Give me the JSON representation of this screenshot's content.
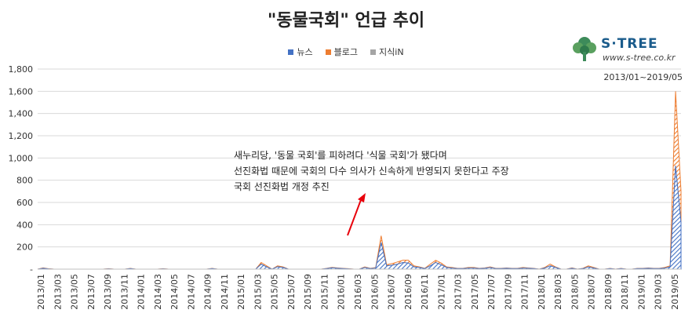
{
  "chart_data": {
    "type": "area",
    "title": "\"동물국회\" 언급 추이",
    "date_range": "2013/01~2019/05",
    "ylim": [
      0,
      1800
    ],
    "yticks": [
      0,
      200,
      400,
      600,
      800,
      1000,
      1200,
      1400,
      1600,
      1800
    ],
    "ytick_labels": [
      "-",
      "200",
      "400",
      "600",
      "800",
      "1,000",
      "1,200",
      "1,400",
      "1,600",
      "1,800"
    ],
    "xtick_labels": [
      "2013/01",
      "2013/03",
      "2013/05",
      "2013/07",
      "2013/09",
      "2013/11",
      "2014/01",
      "2014/03",
      "2014/05",
      "2014/07",
      "2014/09",
      "2014/11",
      "2015/01",
      "2015/03",
      "2015/05",
      "2015/07",
      "2015/09",
      "2015/11",
      "2016/01",
      "2016/03",
      "2016/05",
      "2016/07",
      "2016/09",
      "2016/11",
      "2017/01",
      "2017/03",
      "2017/05",
      "2017/07",
      "2017/09",
      "2017/11",
      "2018/01",
      "2018/03",
      "2018/05",
      "2018/07",
      "2018/09",
      "2018/11",
      "2019/01",
      "2019/03",
      "2019/05"
    ],
    "grid": true,
    "legend_position": "top",
    "stacked": true,
    "series": [
      {
        "name": "뉴스",
        "color": "#4472c4",
        "values": [
          0,
          8,
          3,
          0,
          0,
          0,
          0,
          0,
          0,
          0,
          0,
          0,
          0,
          3,
          0,
          0,
          0,
          5,
          0,
          0,
          0,
          0,
          0,
          3,
          0,
          0,
          0,
          0,
          0,
          0,
          0,
          0,
          5,
          0,
          0,
          0,
          0,
          0,
          0,
          0,
          0,
          45,
          20,
          0,
          22,
          15,
          0,
          0,
          0,
          0,
          0,
          0,
          0,
          5,
          12,
          8,
          5,
          3,
          0,
          0,
          15,
          5,
          10,
          240,
          30,
          35,
          45,
          60,
          55,
          20,
          15,
          5,
          30,
          60,
          40,
          15,
          10,
          5,
          5,
          10,
          10,
          5,
          8,
          15,
          5,
          5,
          8,
          5,
          5,
          10,
          8,
          5,
          0,
          10,
          30,
          15,
          0,
          0,
          8,
          0,
          5,
          20,
          10,
          0,
          0,
          5,
          0,
          5,
          0,
          0,
          5,
          5,
          8,
          5,
          5,
          10,
          20,
          930,
          420
        ]
      },
      {
        "name": "블로그",
        "color": "#ed7d31",
        "values": [
          0,
          3,
          1,
          0,
          0,
          0,
          0,
          0,
          0,
          0,
          0,
          0,
          0,
          1,
          0,
          0,
          0,
          2,
          0,
          0,
          0,
          0,
          0,
          1,
          0,
          0,
          0,
          0,
          0,
          0,
          0,
          0,
          2,
          0,
          0,
          0,
          0,
          0,
          0,
          0,
          0,
          15,
          10,
          0,
          8,
          5,
          0,
          0,
          0,
          0,
          0,
          0,
          0,
          2,
          4,
          3,
          2,
          1,
          0,
          0,
          5,
          2,
          4,
          60,
          10,
          15,
          20,
          20,
          25,
          10,
          5,
          2,
          15,
          20,
          15,
          5,
          5,
          2,
          2,
          5,
          5,
          2,
          3,
          5,
          2,
          2,
          3,
          2,
          2,
          5,
          3,
          2,
          0,
          5,
          15,
          5,
          0,
          0,
          3,
          0,
          2,
          10,
          5,
          0,
          0,
          2,
          0,
          2,
          0,
          0,
          2,
          2,
          3,
          2,
          2,
          5,
          10,
          670,
          280
        ]
      },
      {
        "name": "지식iN",
        "color": "#a5a5a5",
        "values": [
          0,
          0,
          0,
          0,
          0,
          0,
          0,
          0,
          0,
          0,
          0,
          0,
          0,
          0,
          0,
          0,
          0,
          0,
          0,
          0,
          0,
          0,
          0,
          0,
          0,
          0,
          0,
          0,
          0,
          0,
          0,
          0,
          0,
          0,
          0,
          0,
          0,
          0,
          0,
          0,
          0,
          0,
          0,
          0,
          0,
          0,
          0,
          0,
          0,
          0,
          0,
          0,
          0,
          0,
          0,
          0,
          0,
          0,
          0,
          0,
          0,
          0,
          0,
          0,
          0,
          0,
          0,
          0,
          0,
          0,
          0,
          0,
          0,
          0,
          0,
          0,
          0,
          0,
          0,
          0,
          0,
          0,
          0,
          0,
          0,
          0,
          0,
          0,
          0,
          0,
          0,
          0,
          0,
          0,
          0,
          0,
          0,
          0,
          0,
          0,
          0,
          0,
          0,
          0,
          0,
          0,
          0,
          0,
          0,
          0,
          0,
          0,
          0,
          0,
          0,
          0,
          0,
          0,
          0
        ]
      }
    ],
    "annotations": [
      "새누리당, '동물 국회'를 피하려다 '식물 국회'가 됐다며",
      "선진화법 때문에 국회의 다수 의사가 신속하게 반영되지 못한다고 주장",
      "국회 선진화법 개정 추진"
    ]
  },
  "brand": {
    "name": "S·TREE",
    "url": "www.s-tree.co.kr"
  }
}
